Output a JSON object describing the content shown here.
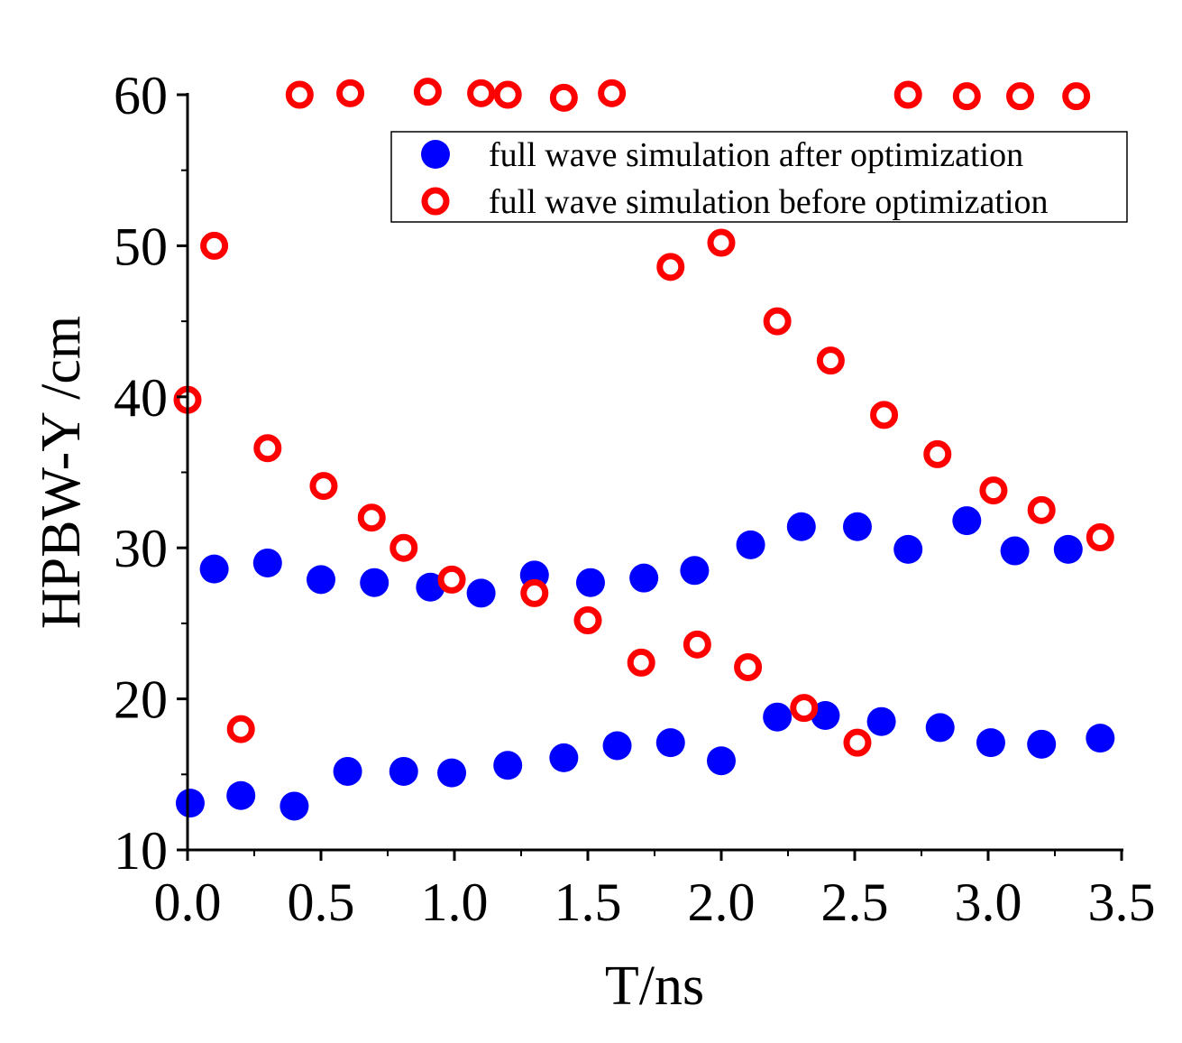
{
  "chart_data": {
    "type": "scatter",
    "title": "",
    "xlabel": "T/ns",
    "ylabel": "HPBW-Y /cm",
    "xlim": [
      0,
      3.5
    ],
    "ylim": [
      10,
      60
    ],
    "x_ticks": [
      "0.0",
      "0.5",
      "1.0",
      "1.5",
      "2.0",
      "2.5",
      "3.0",
      "3.5"
    ],
    "y_ticks": [
      "10",
      "20",
      "30",
      "40",
      "50",
      "60"
    ],
    "legend_position": "top-right",
    "colors": {
      "after": "#0000ff",
      "before": "#ff0000"
    },
    "series": [
      {
        "name": "full wave simulation after optimization",
        "marker": "filled-circle",
        "points": [
          [
            0.01,
            13.1
          ],
          [
            0.1,
            28.6
          ],
          [
            0.2,
            13.6
          ],
          [
            0.3,
            29.0
          ],
          [
            0.4,
            12.9
          ],
          [
            0.5,
            27.9
          ],
          [
            0.6,
            15.2
          ],
          [
            0.7,
            27.7
          ],
          [
            0.81,
            15.2
          ],
          [
            0.91,
            27.4
          ],
          [
            0.99,
            15.1
          ],
          [
            1.1,
            27.0
          ],
          [
            1.2,
            15.6
          ],
          [
            1.3,
            28.2
          ],
          [
            1.41,
            16.1
          ],
          [
            1.51,
            27.7
          ],
          [
            1.61,
            16.9
          ],
          [
            1.71,
            28.0
          ],
          [
            1.81,
            17.1
          ],
          [
            1.9,
            28.5
          ],
          [
            2.0,
            15.9
          ],
          [
            2.11,
            30.2
          ],
          [
            2.21,
            18.8
          ],
          [
            2.3,
            31.4
          ],
          [
            2.39,
            18.9
          ],
          [
            2.51,
            31.4
          ],
          [
            2.6,
            18.5
          ],
          [
            2.7,
            29.9
          ],
          [
            2.82,
            18.1
          ],
          [
            2.92,
            31.8
          ],
          [
            3.01,
            17.1
          ],
          [
            3.1,
            29.8
          ],
          [
            3.2,
            17.0
          ],
          [
            3.3,
            29.9
          ],
          [
            3.42,
            17.4
          ]
        ]
      },
      {
        "name": "full wave simulation before optimization",
        "marker": "open-circle",
        "points": [
          [
            0.0,
            39.8
          ],
          [
            0.1,
            50.0
          ],
          [
            0.2,
            18.0
          ],
          [
            0.3,
            36.6
          ],
          [
            0.42,
            60.0
          ],
          [
            0.51,
            34.1
          ],
          [
            0.61,
            60.1
          ],
          [
            0.69,
            32.0
          ],
          [
            0.81,
            30.0
          ],
          [
            0.9,
            60.2
          ],
          [
            0.99,
            27.9
          ],
          [
            1.1,
            60.1
          ],
          [
            1.2,
            60.0
          ],
          [
            1.3,
            27.0
          ],
          [
            1.41,
            59.8
          ],
          [
            1.5,
            25.2
          ],
          [
            1.59,
            60.1
          ],
          [
            1.7,
            22.4
          ],
          [
            1.81,
            48.6
          ],
          [
            1.91,
            23.6
          ],
          [
            2.0,
            50.2
          ],
          [
            2.1,
            22.1
          ],
          [
            2.21,
            45.0
          ],
          [
            2.31,
            19.4
          ],
          [
            2.41,
            42.4
          ],
          [
            2.51,
            17.1
          ],
          [
            2.61,
            38.8
          ],
          [
            2.7,
            60.0
          ],
          [
            2.81,
            36.2
          ],
          [
            2.92,
            59.9
          ],
          [
            3.02,
            33.8
          ],
          [
            3.12,
            59.9
          ],
          [
            3.2,
            32.5
          ],
          [
            3.33,
            59.9
          ],
          [
            3.42,
            30.7
          ]
        ]
      }
    ]
  }
}
